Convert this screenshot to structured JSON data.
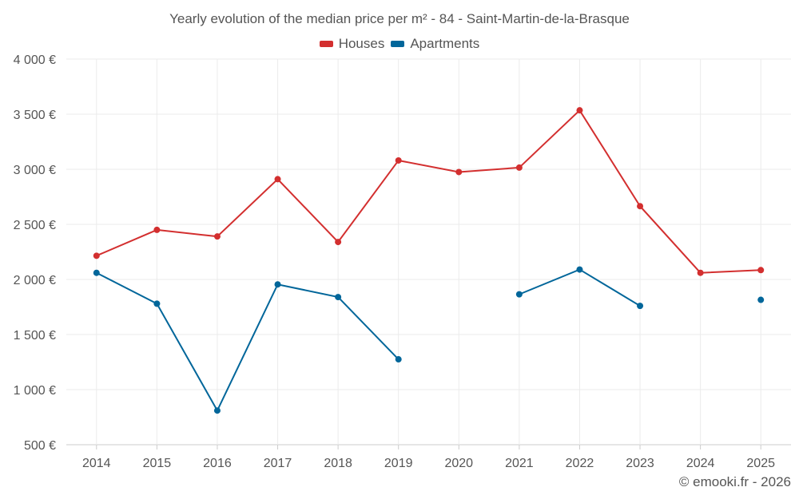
{
  "chart_data": {
    "type": "line",
    "title": "Yearly evolution of the median price per m² - 84 - Saint-Martin-de-la-Brasque",
    "categories": [
      "2014",
      "2015",
      "2016",
      "2017",
      "2018",
      "2019",
      "2020",
      "2021",
      "2022",
      "2023",
      "2024",
      "2025"
    ],
    "ylim": [
      500,
      4000
    ],
    "yticks": [
      500,
      1000,
      1500,
      2000,
      2500,
      3000,
      3500,
      4000
    ],
    "ytick_labels": [
      "500 €",
      "1 000 €",
      "1 500 €",
      "2 000 €",
      "2 500 €",
      "3 000 €",
      "3 500 €",
      "4 000 €"
    ],
    "grid": true,
    "legend_position": "top-center",
    "series": [
      {
        "name": "Houses",
        "color": "#d32f2f",
        "values": [
          2215,
          2450,
          2390,
          2910,
          2340,
          3080,
          2975,
          3015,
          3535,
          2665,
          2060,
          2085
        ]
      },
      {
        "name": "Apartments",
        "color": "#01669a",
        "values": [
          2060,
          1780,
          810,
          1955,
          1840,
          1275,
          null,
          1865,
          2090,
          1760,
          null,
          1815
        ]
      }
    ]
  },
  "footer": {
    "credit": "© emooki.fr - 2026"
  }
}
